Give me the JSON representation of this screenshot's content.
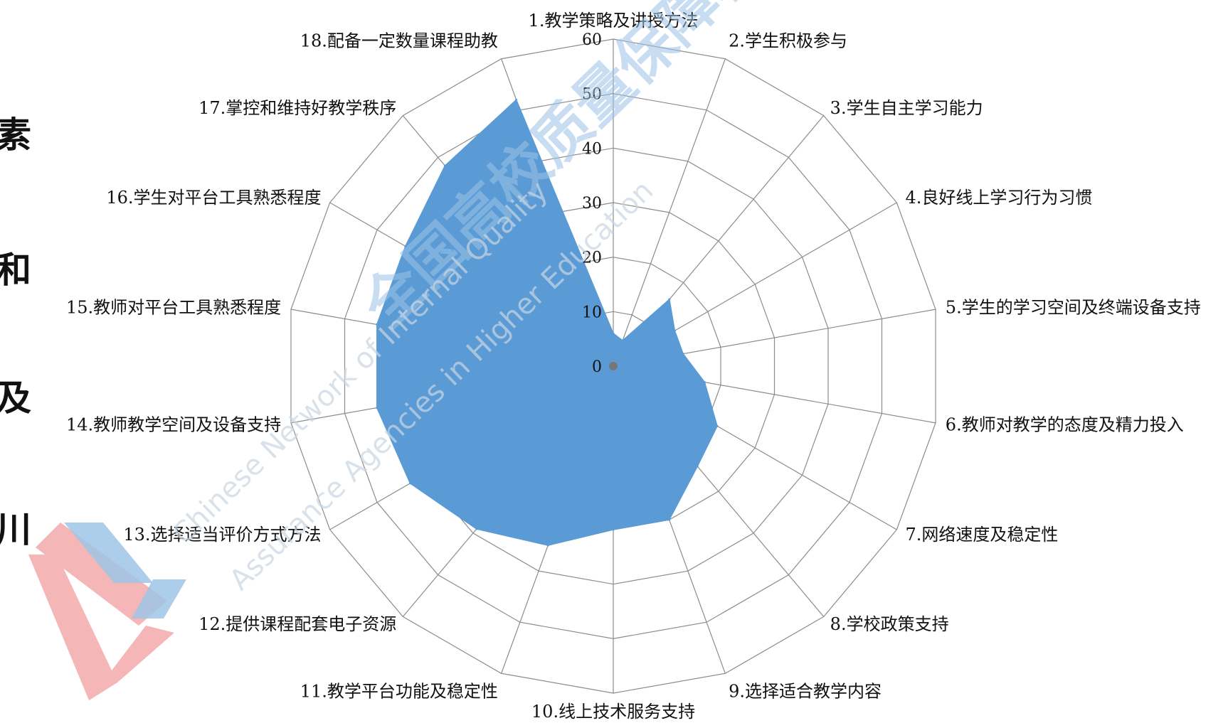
{
  "chart_data": {
    "type": "radar",
    "categories": [
      "1.教学策略及讲授方法",
      "2.学生积极参与",
      "3.学生自主学习能力",
      "4.良好线上学习行为习惯",
      "5.学生的学习空间及终端设备支持",
      "6.教师对教学的态度及精力投入",
      "7.网络速度及稳定性",
      "8.学校政策支持",
      "9.选择适合教学内容",
      "10.线上技术服务支持",
      "11.教学平台功能及稳定性",
      "12.提供课程配套电子资源",
      "13.选择适当评价方式方法",
      "14.教师教学空间及设备支持",
      "15.教师对平台工具熟悉程度",
      "16.学生对平台工具熟悉程度",
      "17.掌控和维持好教学秩序",
      "18.配备一定数量课程助教"
    ],
    "series": [
      {
        "values": [
          6,
          5,
          16,
          13,
          13,
          17,
          22,
          24,
          30,
          30,
          35,
          39,
          43,
          44,
          44,
          44,
          48,
          52
        ]
      }
    ],
    "ticks": [
      "0",
      "10",
      "20",
      "30",
      "40",
      "50",
      "60"
    ],
    "rmax": 60,
    "grid": true
  },
  "side_chars": [
    "素",
    "和",
    "及",
    "川"
  ],
  "watermark": {
    "cn": "全国高校质量保障机构联盟",
    "en1": "Chinese Network of Internal Quality",
    "en2": "Assurance Agencies in Higher Education"
  },
  "colors": {
    "fill": "#5b9bd5",
    "grid": "#8c8c8c",
    "logo_blue": "#9fc5e8",
    "logo_red": "#f4b6b6"
  }
}
